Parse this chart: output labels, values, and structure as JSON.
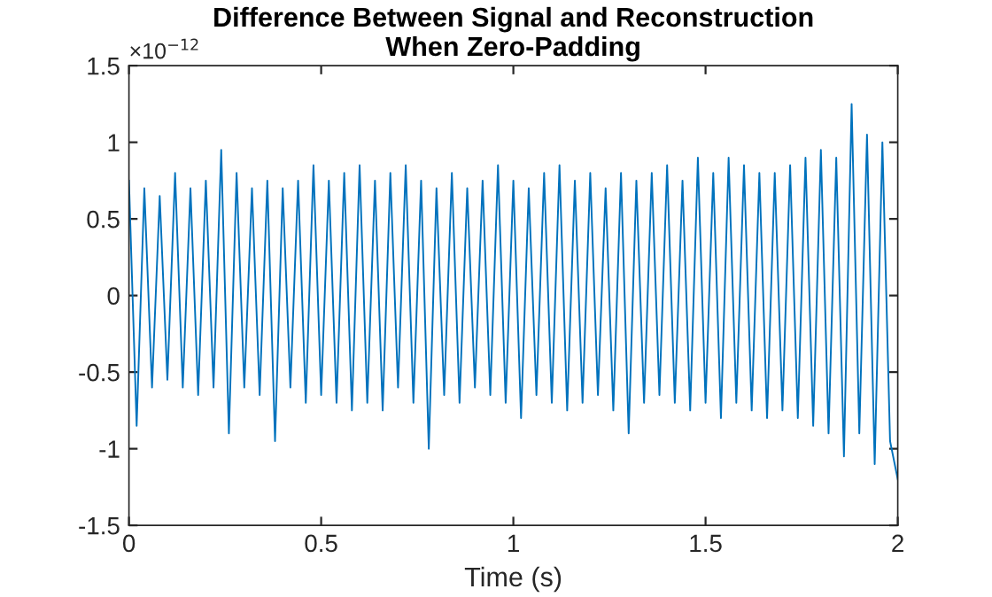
{
  "chart_data": {
    "type": "line",
    "title": "Difference Between Signal and Reconstruction\nWhen Zero-Padding",
    "xlabel": "Time (s)",
    "annotations": [
      "×10$^{−12}$"
    ],
    "xlim": [
      0,
      2
    ],
    "xticks": [
      0,
      0.5,
      1,
      1.5,
      2
    ],
    "ylim": [
      -1.5,
      1.5
    ],
    "yticks": [
      -1.5,
      -1,
      -0.5,
      0,
      0.5,
      1,
      1.5
    ],
    "grid": false,
    "legend": false,
    "series": [
      {
        "color": "#0072bd",
        "x": [
          0,
          0.02,
          0.04,
          0.06,
          0.08,
          0.1,
          0.12,
          0.14,
          0.16,
          0.18,
          0.2,
          0.22,
          0.24,
          0.26,
          0.28,
          0.3,
          0.32,
          0.34,
          0.36,
          0.38,
          0.4,
          0.42,
          0.44,
          0.46,
          0.48,
          0.5,
          0.52,
          0.54,
          0.56,
          0.58,
          0.6,
          0.62,
          0.64,
          0.66,
          0.68,
          0.7,
          0.72,
          0.74,
          0.76,
          0.78,
          0.8,
          0.82,
          0.84,
          0.86,
          0.88,
          0.9,
          0.92,
          0.94,
          0.96,
          0.98,
          1.0,
          1.02,
          1.04,
          1.06,
          1.08,
          1.1,
          1.12,
          1.14,
          1.16,
          1.18,
          1.2,
          1.22,
          1.24,
          1.26,
          1.28,
          1.3,
          1.32,
          1.34,
          1.36,
          1.38,
          1.4,
          1.42,
          1.44,
          1.46,
          1.48,
          1.5,
          1.52,
          1.54,
          1.56,
          1.58,
          1.6,
          1.62,
          1.64,
          1.66,
          1.68,
          1.7,
          1.72,
          1.74,
          1.76,
          1.78,
          1.8,
          1.82,
          1.84,
          1.86,
          1.88,
          1.9,
          1.92,
          1.94,
          1.96,
          1.98,
          2.0
        ],
        "values": [
          0.75,
          -0.85,
          0.7,
          -0.6,
          0.65,
          -0.55,
          0.8,
          -0.6,
          0.7,
          -0.65,
          0.75,
          -0.6,
          0.95,
          -0.9,
          0.8,
          -0.6,
          0.7,
          -0.65,
          0.75,
          -0.95,
          0.7,
          -0.6,
          0.75,
          -0.7,
          0.85,
          -0.65,
          0.75,
          -0.7,
          0.8,
          -0.75,
          0.85,
          -0.7,
          0.75,
          -0.75,
          0.8,
          -0.6,
          0.85,
          -0.7,
          0.75,
          -1.0,
          0.7,
          -0.65,
          0.8,
          -0.7,
          0.7,
          -0.6,
          0.75,
          -0.65,
          0.85,
          -0.7,
          0.75,
          -0.8,
          0.7,
          -0.65,
          0.8,
          -0.7,
          0.85,
          -0.75,
          0.75,
          -0.7,
          0.8,
          -0.65,
          0.7,
          -0.75,
          0.8,
          -0.9,
          0.75,
          -0.7,
          0.8,
          -0.65,
          0.85,
          -0.7,
          0.75,
          -0.75,
          0.9,
          -0.7,
          0.8,
          -0.8,
          0.9,
          -0.7,
          0.85,
          -0.75,
          0.8,
          -0.8,
          0.8,
          -0.75,
          0.85,
          -0.8,
          0.9,
          -0.85,
          0.95,
          -0.9,
          0.9,
          -1.05,
          1.25,
          -0.9,
          1.05,
          -1.1,
          1.0,
          -0.95,
          -1.2
        ]
      }
    ]
  }
}
